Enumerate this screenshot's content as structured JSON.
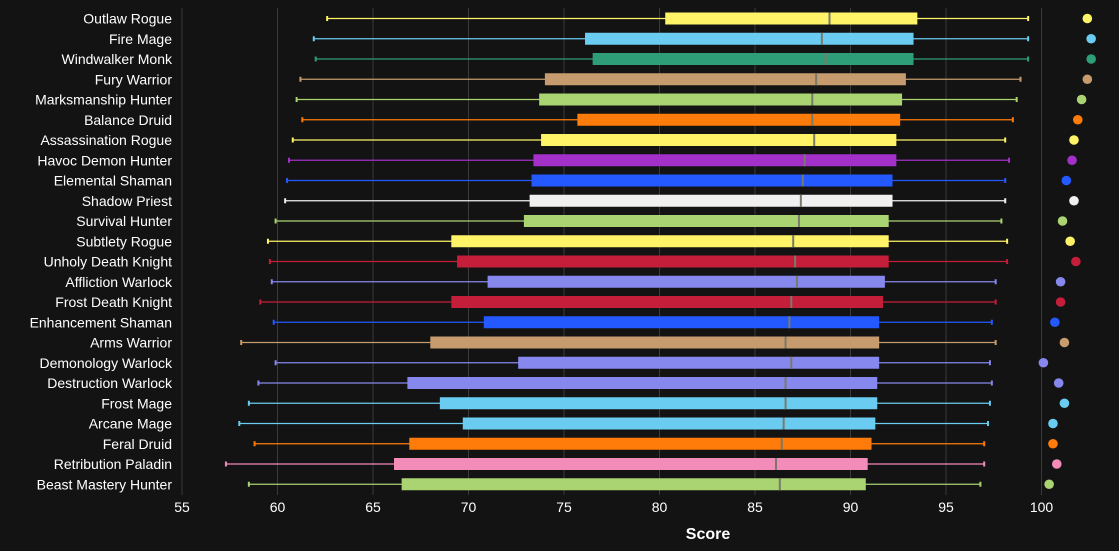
{
  "chart_data": {
    "type": "box",
    "xlabel": "Score",
    "xlim": [
      55,
      102
    ],
    "ticks": [
      55,
      60,
      65,
      70,
      75,
      80,
      85,
      90,
      95,
      100
    ],
    "grid": true,
    "colors": {
      "background": "#131313",
      "grid": "#3a3a3a",
      "text": "#ffffff",
      "median": "#7a7a6a"
    },
    "series": [
      {
        "name": "Outlaw Rogue",
        "color": "#FFF468",
        "min": 62.6,
        "q1": 80.3,
        "median": 88.9,
        "q3": 93.5,
        "max": 99.3,
        "max_point": 102.4
      },
      {
        "name": "Fire Mage",
        "color": "#69CCF0",
        "min": 61.9,
        "q1": 76.1,
        "median": 88.5,
        "q3": 93.3,
        "max": 99.3,
        "max_point": 102.6
      },
      {
        "name": "Windwalker Monk",
        "color": "#2E9E78",
        "min": 62.0,
        "q1": 76.5,
        "median": 88.7,
        "q3": 93.3,
        "max": 99.3,
        "max_point": 102.6
      },
      {
        "name": "Fury Warrior",
        "color": "#C69B6D",
        "min": 61.2,
        "q1": 74.0,
        "median": 88.2,
        "q3": 92.9,
        "max": 98.9,
        "max_point": 102.4
      },
      {
        "name": "Marksmanship Hunter",
        "color": "#AAD372",
        "min": 61.0,
        "q1": 73.7,
        "median": 88.0,
        "q3": 92.7,
        "max": 98.7,
        "max_point": 102.1
      },
      {
        "name": "Balance Druid",
        "color": "#FF7C0A",
        "min": 61.3,
        "q1": 75.7,
        "median": 88.0,
        "q3": 92.6,
        "max": 98.5,
        "max_point": 101.9
      },
      {
        "name": "Assassination Rogue",
        "color": "#FFF468",
        "min": 60.8,
        "q1": 73.8,
        "median": 88.1,
        "q3": 92.4,
        "max": 98.1,
        "max_point": 101.7
      },
      {
        "name": "Havoc Demon Hunter",
        "color": "#A330C9",
        "min": 60.6,
        "q1": 73.4,
        "median": 87.6,
        "q3": 92.4,
        "max": 98.3,
        "max_point": 101.6
      },
      {
        "name": "Elemental Shaman",
        "color": "#2459FF",
        "min": 60.5,
        "q1": 73.3,
        "median": 87.5,
        "q3": 92.2,
        "max": 98.1,
        "max_point": 101.3
      },
      {
        "name": "Shadow Priest",
        "color": "#F0F0F0",
        "min": 60.4,
        "q1": 73.2,
        "median": 87.4,
        "q3": 92.2,
        "max": 98.1,
        "max_point": 101.7
      },
      {
        "name": "Survival Hunter",
        "color": "#AAD372",
        "min": 59.9,
        "q1": 72.9,
        "median": 87.3,
        "q3": 92.0,
        "max": 97.9,
        "max_point": 101.1
      },
      {
        "name": "Subtlety Rogue",
        "color": "#FFF468",
        "min": 59.5,
        "q1": 69.1,
        "median": 87.0,
        "q3": 92.0,
        "max": 98.2,
        "max_point": 101.5
      },
      {
        "name": "Unholy Death Knight",
        "color": "#C41E3A",
        "min": 59.6,
        "q1": 69.4,
        "median": 87.1,
        "q3": 92.0,
        "max": 98.2,
        "max_point": 101.8
      },
      {
        "name": "Affliction Warlock",
        "color": "#8788EE",
        "min": 59.7,
        "q1": 71.0,
        "median": 87.2,
        "q3": 91.8,
        "max": 97.6,
        "max_point": 101.0
      },
      {
        "name": "Frost Death Knight",
        "color": "#C41E3A",
        "min": 59.1,
        "q1": 69.1,
        "median": 86.9,
        "q3": 91.7,
        "max": 97.6,
        "max_point": 101.0
      },
      {
        "name": "Enhancement Shaman",
        "color": "#2459FF",
        "min": 59.8,
        "q1": 70.8,
        "median": 86.8,
        "q3": 91.5,
        "max": 97.4,
        "max_point": 100.7
      },
      {
        "name": "Arms Warrior",
        "color": "#C69B6D",
        "min": 58.1,
        "q1": 68.0,
        "median": 86.6,
        "q3": 91.5,
        "max": 97.6,
        "max_point": 101.2
      },
      {
        "name": "Demonology Warlock",
        "color": "#8788EE",
        "min": 59.9,
        "q1": 72.6,
        "median": 86.9,
        "q3": 91.5,
        "max": 97.3,
        "max_point": 100.1
      },
      {
        "name": "Destruction Warlock",
        "color": "#8788EE",
        "min": 59.0,
        "q1": 66.8,
        "median": 86.6,
        "q3": 91.4,
        "max": 97.4,
        "max_point": 100.9
      },
      {
        "name": "Frost Mage",
        "color": "#69CCF0",
        "min": 58.5,
        "q1": 68.5,
        "median": 86.6,
        "q3": 91.4,
        "max": 97.3,
        "max_point": 101.2
      },
      {
        "name": "Arcane Mage",
        "color": "#69CCF0",
        "min": 58.0,
        "q1": 69.7,
        "median": 86.5,
        "q3": 91.3,
        "max": 97.2,
        "max_point": 100.6
      },
      {
        "name": "Feral Druid",
        "color": "#FF7C0A",
        "min": 58.8,
        "q1": 66.9,
        "median": 86.4,
        "q3": 91.1,
        "max": 97.0,
        "max_point": 100.6
      },
      {
        "name": "Retribution Paladin",
        "color": "#F48CBA",
        "min": 57.3,
        "q1": 66.1,
        "median": 86.1,
        "q3": 90.9,
        "max": 97.0,
        "max_point": 100.8
      },
      {
        "name": "Beast Mastery Hunter",
        "color": "#AAD372",
        "min": 58.5,
        "q1": 66.5,
        "median": 86.3,
        "q3": 90.8,
        "max": 96.8,
        "max_point": 100.4
      }
    ]
  }
}
